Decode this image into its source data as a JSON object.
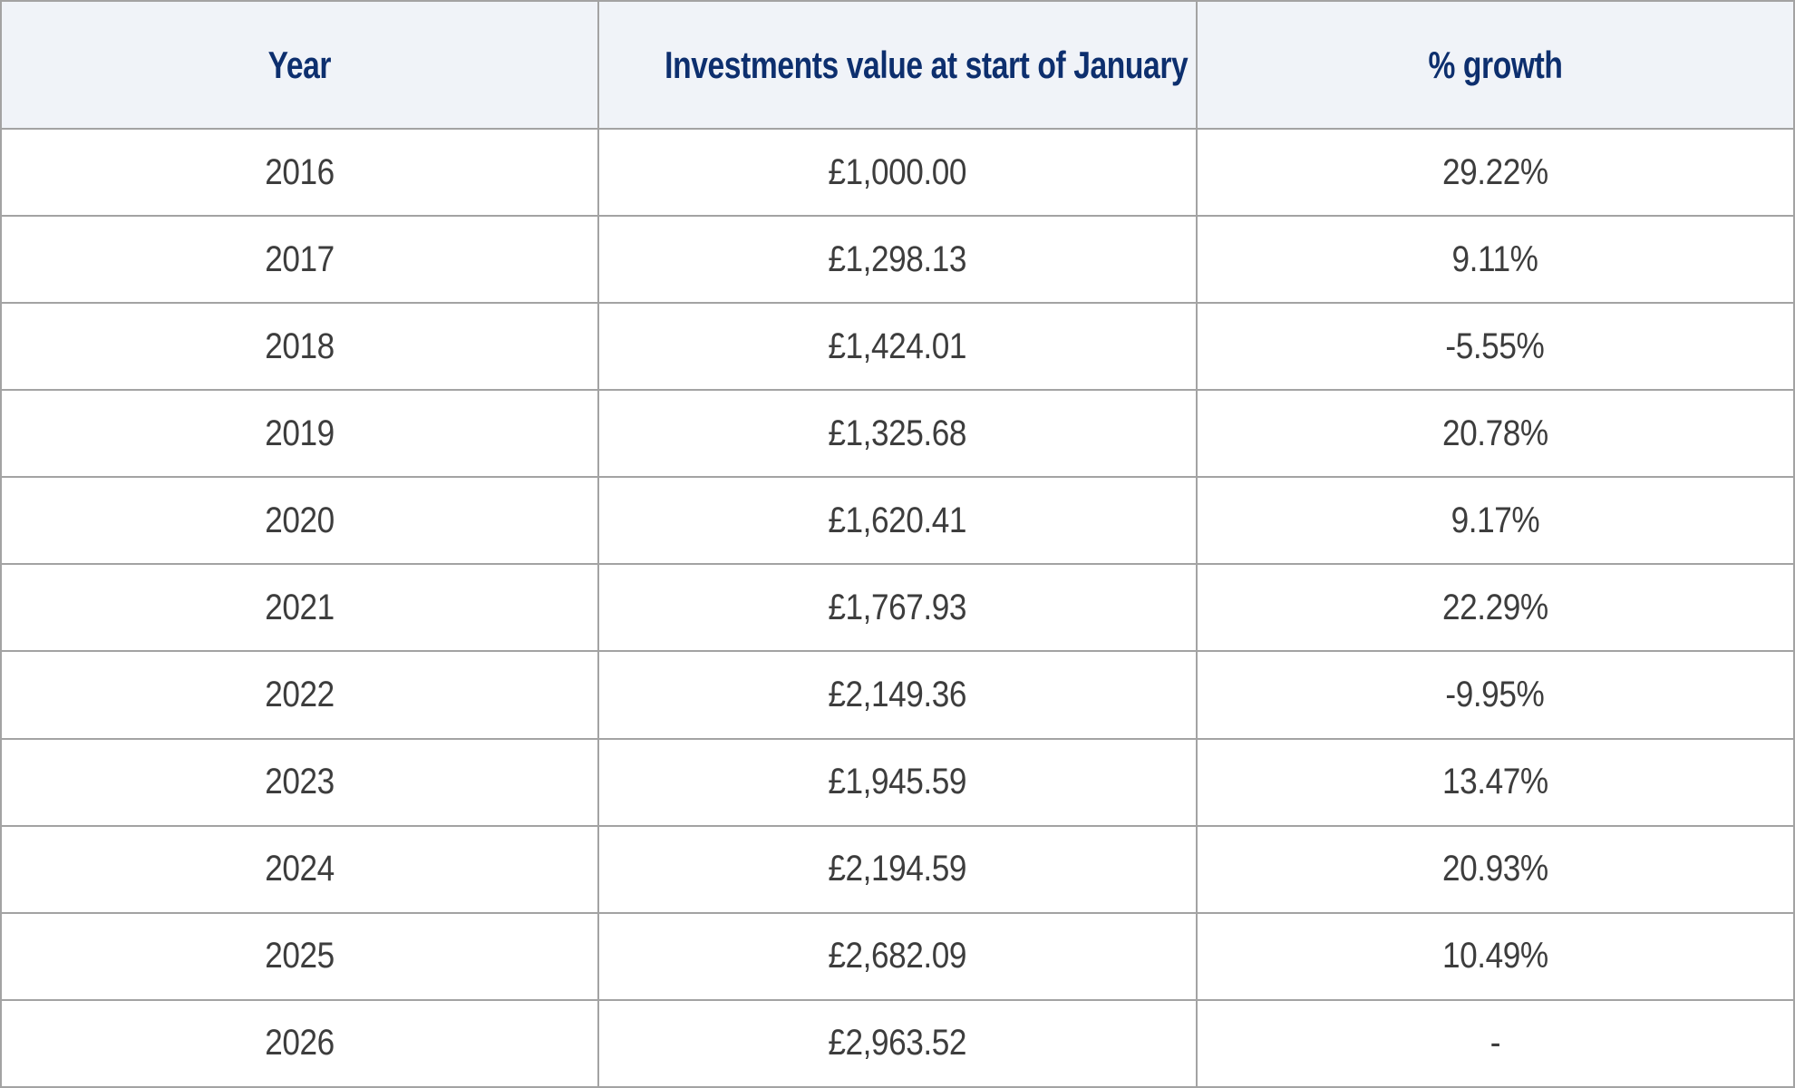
{
  "colors": {
    "header_bg": "#f0f3f8",
    "header_text": "#0d2f6e",
    "body_text": "#3d3d3d",
    "border": "#a3a3a3",
    "body_bg": "#ffffff"
  },
  "chart_data": {
    "type": "table",
    "title": "",
    "columns": [
      "Year",
      "Investments value at start of January",
      "% growth"
    ],
    "rows": [
      {
        "year": "2016",
        "value": "£1,000.00",
        "growth": "29.22%"
      },
      {
        "year": "2017",
        "value": "£1,298.13",
        "growth": "9.11%"
      },
      {
        "year": "2018",
        "value": "£1,424.01",
        "growth": "-5.55%"
      },
      {
        "year": "2019",
        "value": "£1,325.68",
        "growth": "20.78%"
      },
      {
        "year": "2020",
        "value": "£1,620.41",
        "growth": "9.17%"
      },
      {
        "year": "2021",
        "value": "£1,767.93",
        "growth": "22.29%"
      },
      {
        "year": "2022",
        "value": "£2,149.36",
        "growth": "-9.95%"
      },
      {
        "year": "2023",
        "value": "£1,945.59",
        "growth": "13.47%"
      },
      {
        "year": "2024",
        "value": "£2,194.59",
        "growth": "20.93%"
      },
      {
        "year": "2025",
        "value": "£2,682.09",
        "growth": "10.49%"
      },
      {
        "year": "2026",
        "value": "£2,963.52",
        "growth": "-"
      }
    ]
  }
}
